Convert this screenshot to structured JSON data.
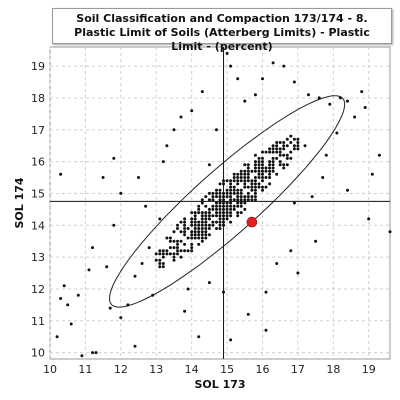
{
  "chart_data": {
    "type": "scatter",
    "title": "Soil Classification and Compaction 173/174 - 8. Plastic Limit of Soils (Atterberg Limits) - Plastic Limit - (percent)",
    "xlabel": "SOL 173",
    "ylabel": "SOL 174",
    "xlim": [
      10,
      19.6
    ],
    "ylim": [
      9.8,
      19.6
    ],
    "x_ticks": [
      "10",
      "11",
      "12",
      "13",
      "14",
      "15",
      "16",
      "17",
      "18",
      "19"
    ],
    "y_ticks": [
      "10",
      "11",
      "12",
      "13",
      "14",
      "15",
      "16",
      "17",
      "18",
      "19"
    ],
    "grid": true,
    "reference_lines": {
      "x": 14.9,
      "y": 14.75
    },
    "highlight_point": {
      "x": 15.7,
      "y": 14.1,
      "color": "#e02020"
    },
    "confidence_ellipse": {
      "center": [
        15,
        14.75
      ],
      "semi_major": 4.6,
      "semi_minor": 0.95,
      "angle_deg": 45
    },
    "series": [
      {
        "type": "scatter",
        "points": [
          [
            10.2,
            10.5
          ],
          [
            10.3,
            11.7
          ],
          [
            10.5,
            11.5
          ],
          [
            10.4,
            12.1
          ],
          [
            10.8,
            11.8
          ],
          [
            10.9,
            9.9
          ],
          [
            10.6,
            10.9
          ],
          [
            11.2,
            10.0
          ],
          [
            11.3,
            10.0
          ],
          [
            10.3,
            15.6
          ],
          [
            11.5,
            15.5
          ],
          [
            11.2,
            13.3
          ],
          [
            11.1,
            12.6
          ],
          [
            11.6,
            12.7
          ],
          [
            11.8,
            14.0
          ],
          [
            11.7,
            11.4
          ],
          [
            12.0,
            11.1
          ],
          [
            12.2,
            11.5
          ],
          [
            12.4,
            12.4
          ],
          [
            12.6,
            12.8
          ],
          [
            12.8,
            13.3
          ],
          [
            12.9,
            11.8
          ],
          [
            13.1,
            14.2
          ],
          [
            13.2,
            16.0
          ],
          [
            13.5,
            17.0
          ],
          [
            13.7,
            17.4
          ],
          [
            14.0,
            17.6
          ],
          [
            14.3,
            18.2
          ],
          [
            14.5,
            15.9
          ],
          [
            14.7,
            17.0
          ],
          [
            15.0,
            19.4
          ],
          [
            15.1,
            19.0
          ],
          [
            15.3,
            18.6
          ],
          [
            15.5,
            17.9
          ],
          [
            15.8,
            18.1
          ],
          [
            16.0,
            18.6
          ],
          [
            16.3,
            19.1
          ],
          [
            16.6,
            19.0
          ],
          [
            16.9,
            18.5
          ],
          [
            17.3,
            18.1
          ],
          [
            17.6,
            18.0
          ],
          [
            17.9,
            17.8
          ],
          [
            18.2,
            18.0
          ],
          [
            18.4,
            17.9
          ],
          [
            18.6,
            17.4
          ],
          [
            18.8,
            18.2
          ],
          [
            18.9,
            17.7
          ],
          [
            19.1,
            15.6
          ],
          [
            19.3,
            16.2
          ],
          [
            19.6,
            13.8
          ],
          [
            18.1,
            16.9
          ],
          [
            17.2,
            16.5
          ],
          [
            17.8,
            16.2
          ],
          [
            16.4,
            12.8
          ],
          [
            16.8,
            13.2
          ],
          [
            17.0,
            12.5
          ],
          [
            16.1,
            11.9
          ],
          [
            15.6,
            11.2
          ],
          [
            14.9,
            11.9
          ],
          [
            14.5,
            12.2
          ],
          [
            14.2,
            10.5
          ],
          [
            15.1,
            10.4
          ],
          [
            12.4,
            10.2
          ],
          [
            13.9,
            12.0
          ],
          [
            16.9,
            14.7
          ],
          [
            17.4,
            14.9
          ],
          [
            17.7,
            15.5
          ],
          [
            18.4,
            15.1
          ],
          [
            19.0,
            14.2
          ],
          [
            12.0,
            15.0
          ],
          [
            12.5,
            15.5
          ],
          [
            11.8,
            16.1
          ],
          [
            13.3,
            16.5
          ],
          [
            12.7,
            14.6
          ],
          [
            16.1,
            10.7
          ],
          [
            13.8,
            11.3
          ],
          [
            17.5,
            13.5
          ]
        ]
      }
    ]
  }
}
